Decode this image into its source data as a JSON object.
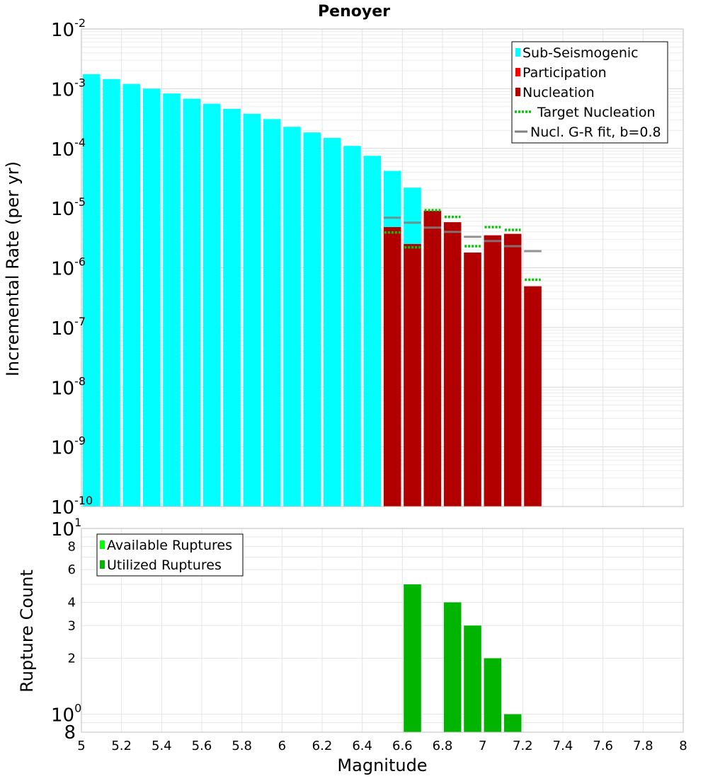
{
  "chart_data": [
    {
      "type": "bar",
      "title": "Penoyer",
      "xlabel": "",
      "ylabel": "Incremental Rate (per yr)",
      "yscale": "log",
      "ylim": [
        1e-10,
        0.01
      ],
      "xlim": [
        5,
        8
      ],
      "grid": true,
      "legend_position": "top-right",
      "y_ticks": [
        {
          "base": "10",
          "exp": "-10"
        },
        {
          "base": "10",
          "exp": "-9"
        },
        {
          "base": "10",
          "exp": "-8"
        },
        {
          "base": "10",
          "exp": "-7"
        },
        {
          "base": "10",
          "exp": "-6"
        },
        {
          "base": "10",
          "exp": "-5"
        },
        {
          "base": "10",
          "exp": "-4"
        },
        {
          "base": "10",
          "exp": "-3"
        },
        {
          "base": "10",
          "exp": "-2"
        }
      ],
      "legend": [
        {
          "label": "Sub-Seismogenic",
          "style": "box",
          "color": "#00ffff"
        },
        {
          "label": "Participation",
          "style": "box",
          "color": "#ff0000"
        },
        {
          "label": "Nucleation",
          "style": "box",
          "color": "#b20000"
        },
        {
          "label": "Target Nucleation",
          "style": "dotted",
          "color": "#00c800"
        },
        {
          "label": "Nucl. G-R fit, b=0.8",
          "style": "line",
          "color": "#808080"
        }
      ],
      "series": [
        {
          "name": "Sub-Seismogenic",
          "color": "#00ffff",
          "x": [
            5.05,
            5.15,
            5.25,
            5.35,
            5.45,
            5.55,
            5.65,
            5.75,
            5.85,
            5.95,
            6.05,
            6.15,
            6.25,
            6.35,
            6.45,
            6.55,
            6.65
          ],
          "values": [
            0.00175,
            0.00145,
            0.0012,
            0.001,
            0.00083,
            0.00068,
            0.00056,
            0.00046,
            0.00038,
            0.00031,
            0.00023,
            0.000185,
            0.00015,
            0.00011,
            7.5e-05,
            4.2e-05,
            2.2e-05
          ]
        },
        {
          "name": "Nucleation",
          "color": "#b20000",
          "x": [
            6.55,
            6.65,
            6.75,
            6.85,
            6.95,
            7.05,
            7.15,
            7.25
          ],
          "values": [
            4.8e-06,
            2.5e-06,
            9e-06,
            5.8e-06,
            1.8e-06,
            3.5e-06,
            3.7e-06,
            4.9e-07
          ]
        },
        {
          "name": "Target Nucleation",
          "color": "#00c800",
          "x": [
            6.55,
            6.65,
            6.75,
            6.85,
            6.95,
            7.05,
            7.15,
            7.25
          ],
          "values": [
            3.9e-06,
            2.2e-06,
            9.2e-06,
            7.1e-06,
            2.3e-06,
            4.8e-06,
            4.3e-06,
            6.3e-07
          ]
        },
        {
          "name": "Nucl. G-R fit, b=0.8",
          "color": "#808080",
          "x": [
            6.55,
            6.65,
            6.75,
            6.85,
            6.95,
            7.05,
            7.15,
            7.25
          ],
          "values": [
            6.9e-06,
            5.7e-06,
            4.7e-06,
            4e-06,
            3.3e-06,
            2.8e-06,
            2.3e-06,
            1.9e-06
          ]
        }
      ]
    },
    {
      "type": "bar",
      "title": "",
      "xlabel": "Magnitude",
      "ylabel": "Rupture Count",
      "yscale": "log",
      "ylim": [
        0.8,
        10
      ],
      "xlim": [
        5,
        8
      ],
      "grid": true,
      "legend_position": "top-left",
      "x_ticks": [
        "5",
        "5.2",
        "5.4",
        "5.6",
        "5.8",
        "6",
        "6.2",
        "6.4",
        "6.6",
        "6.8",
        "7",
        "7.2",
        "7.4",
        "7.6",
        "7.8",
        "8"
      ],
      "y_ticks_minor": [
        "2",
        "3",
        "4",
        "6",
        "8"
      ],
      "y_tick_bottom": "8",
      "y_ticks_major": [
        {
          "base": "10",
          "exp": "0"
        },
        {
          "base": "10",
          "exp": "1"
        }
      ],
      "legend": [
        {
          "label": "Available Ruptures",
          "style": "box",
          "color": "#00ff00"
        },
        {
          "label": "Utilized Ruptures",
          "style": "box",
          "color": "#00b400"
        }
      ],
      "series": [
        {
          "name": "Utilized Ruptures",
          "color": "#00b400",
          "x": [
            6.65,
            6.85,
            6.95,
            7.05,
            7.15
          ],
          "values": [
            5,
            4,
            3,
            2,
            1
          ]
        }
      ]
    }
  ]
}
